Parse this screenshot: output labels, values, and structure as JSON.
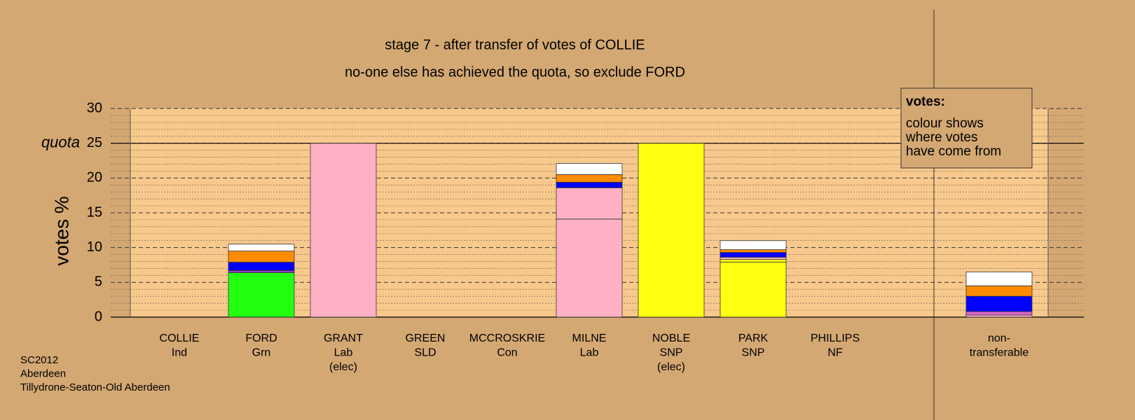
{
  "chart_data": {
    "type": "stacked_bar",
    "title": "stage 7 - after transfer of votes of COLLIE",
    "subtitle": "no-one else has achieved the quota, so exclude FORD",
    "ylabel": "votes %",
    "ylim": [
      0,
      30
    ],
    "yticks": [
      0,
      5,
      10,
      15,
      20,
      25,
      30
    ],
    "minor_yticks": [
      1,
      2,
      3,
      4,
      6,
      7,
      8,
      9,
      11,
      12,
      13,
      14,
      16,
      17,
      18,
      19,
      21,
      22,
      23,
      24,
      26,
      27,
      28,
      29
    ],
    "quota_label": "quota",
    "quota": 25,
    "categories": [
      [
        "COLLIE",
        "Ind"
      ],
      [
        "FORD",
        "Grn"
      ],
      [
        "GRANT",
        "Lab",
        "(elec)"
      ],
      [
        "GREEN",
        "SLD"
      ],
      [
        "MCCROSKRIE",
        "Con"
      ],
      [
        "MILNE",
        "Lab"
      ],
      [
        "NOBLE",
        "SNP",
        "(elec)"
      ],
      [
        "PARK",
        "SNP"
      ],
      [
        "PHILLIPS",
        "NF"
      ],
      [
        "non-",
        "transferable"
      ]
    ],
    "stacks": [
      [],
      [
        {
          "color": "#22ff11",
          "value": 6.4
        },
        {
          "color": "#9933cc",
          "value": 0.3
        },
        {
          "color": "#0000ff",
          "value": 1.2
        },
        {
          "color": "#ff8c00",
          "value": 1.6
        },
        {
          "color": "#ffffff",
          "value": 1.0
        }
      ],
      [
        {
          "color": "#ffb0c4",
          "value": 25
        }
      ],
      [],
      [],
      [
        {
          "color": "#ffb0c4",
          "value": 14.1
        },
        {
          "color": "#ffb0c4",
          "value": 4.5
        },
        {
          "color": "#0000ff",
          "value": 0.8
        },
        {
          "color": "#ff8c00",
          "value": 1.1
        },
        {
          "color": "#ffffff",
          "value": 1.6
        }
      ],
      [
        {
          "color": "#ffff14",
          "value": 25
        }
      ],
      [
        {
          "color": "#ffff14",
          "value": 7.9
        },
        {
          "color": "#ffff14",
          "value": 0.4
        },
        {
          "color": "#ffb0c4",
          "value": 0.3
        },
        {
          "color": "#0000ff",
          "value": 0.7
        },
        {
          "color": "#ff8c00",
          "value": 0.4
        },
        {
          "color": "#ffffff",
          "value": 1.3
        }
      ],
      [],
      [
        {
          "color": "#ffb0c4",
          "value": 0.3
        },
        {
          "color": "#dd66cc",
          "value": 0.5
        },
        {
          "color": "#0000ff",
          "value": 2.2
        },
        {
          "color": "#ff8c00",
          "value": 1.5
        },
        {
          "color": "#ffffff",
          "value": 2.0
        }
      ]
    ],
    "legend": {
      "title": "votes:",
      "lines": [
        "colour shows",
        "where votes",
        "have come from"
      ]
    },
    "footer": [
      "SC2012",
      "Aberdeen",
      "Tillydrone-Seaton-Old Aberdeen"
    ]
  }
}
